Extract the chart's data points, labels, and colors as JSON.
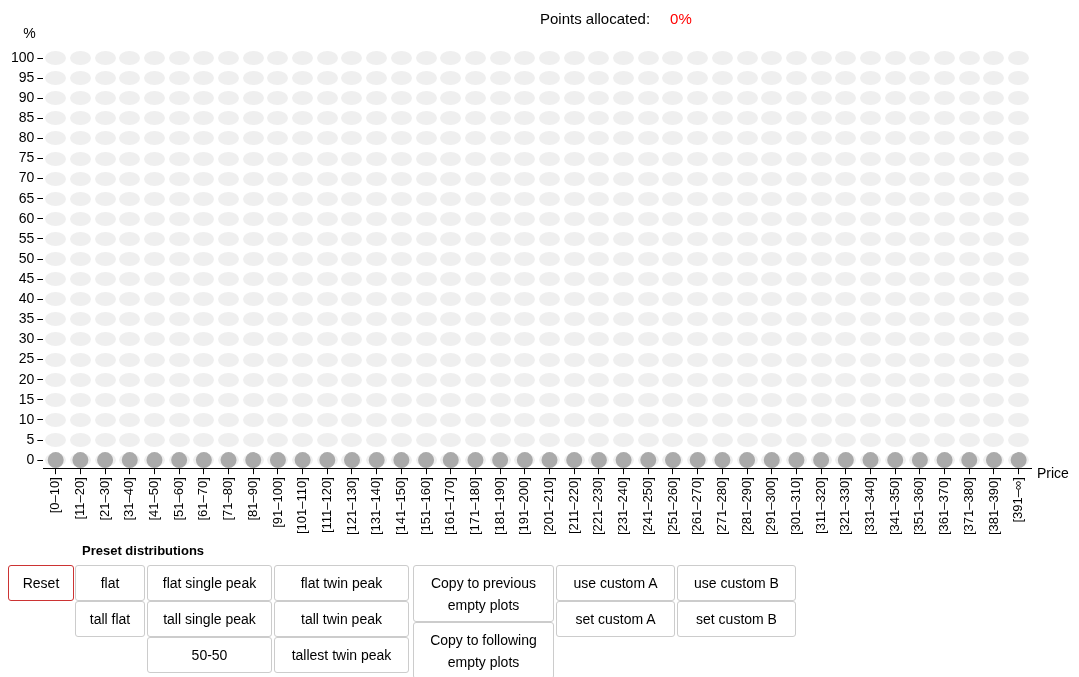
{
  "chart_data": {
    "type": "scatter",
    "title": "Points allocated:",
    "subtitle": "0%",
    "xlabel": "Price",
    "ylabel": "%",
    "categories": [
      "[0–10]",
      "[11–20]",
      "[21–30]",
      "[31–40]",
      "[41–50]",
      "[51–60]",
      "[61–70]",
      "[71–80]",
      "[81–90]",
      "[91–100]",
      "[101–110]",
      "[111–120]",
      "[121–130]",
      "[131–140]",
      "[141–150]",
      "[151–160]",
      "[161–170]",
      "[171–180]",
      "[181–190]",
      "[191–200]",
      "[201–210]",
      "[211–220]",
      "[221–230]",
      "[231–240]",
      "[241–250]",
      "[251–260]",
      "[261–270]",
      "[271–280]",
      "[281–290]",
      "[291–300]",
      "[301–310]",
      "[311–320]",
      "[321–330]",
      "[331–340]",
      "[341–350]",
      "[351–360]",
      "[361–370]",
      "[371–380]",
      "[381–390]",
      "[391–∞]"
    ],
    "series": [
      {
        "color": "#aaaaaa",
        "values": [
          0,
          0,
          0,
          0,
          0,
          0,
          0,
          0,
          0,
          0,
          0,
          0,
          0,
          0,
          0,
          0,
          0,
          0,
          0,
          0,
          0,
          0,
          0,
          0,
          0,
          0,
          0,
          0,
          0,
          0,
          0,
          0,
          0,
          0,
          0,
          0,
          0,
          0,
          0,
          0
        ]
      }
    ],
    "ylim": [
      -2,
      100
    ],
    "yticks": [
      0,
      5,
      10,
      15,
      20,
      25,
      30,
      35,
      40,
      45,
      50,
      55,
      60,
      65,
      70,
      75,
      80,
      85,
      90,
      95,
      100
    ],
    "grid": false,
    "marker": "circle",
    "annotations": [
      "Preset distributions",
      "Reset",
      "flat",
      "tall flat",
      "flat single peak",
      "tall single peak",
      "50-50",
      "flat twin peak",
      "tall twin peak",
      "tallest twin peak",
      "Copy to previous empty plots",
      "Copy to following empty plots",
      "use custom A",
      "set custom A",
      "use custom B",
      "set custom B"
    ]
  }
}
